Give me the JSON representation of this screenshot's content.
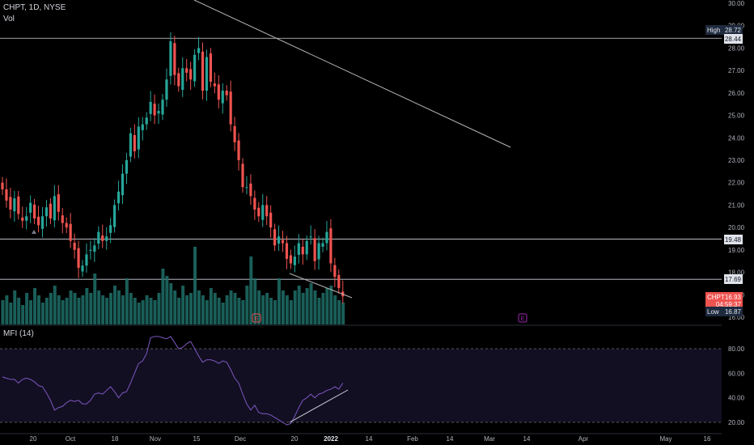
{
  "header": {
    "symbol_line": "CHPT, 1D, NYSE",
    "volume_label": "Vol"
  },
  "indicator": {
    "label": "MFI (14)"
  },
  "colors": {
    "background": "#000000",
    "up": "#26a69a",
    "down": "#ef5350",
    "volume_up": "#1f6f67",
    "volume_down": "#1f6f67",
    "line": "#b5b5b5",
    "mfi": "#7e57c2",
    "axis_text": "#b2b5be",
    "earnings": "#ef5350",
    "earnings_future": "#9c27b0"
  },
  "chart_data": [
    {
      "type": "candlestick",
      "title": "CHPT, 1D, NYSE",
      "ylim": [
        16.0,
        30.0
      ],
      "y_ticks": [
        "16.00",
        "17.00",
        "18.00",
        "19.00",
        "20.00",
        "21.00",
        "22.00",
        "23.00",
        "24.00",
        "25.00",
        "26.00",
        "27.00",
        "28.00",
        "29.00",
        "30.00"
      ],
      "x_ticks": [
        "20",
        "Oct",
        "18",
        "Nov",
        "15",
        "Dec",
        "20",
        "2022",
        "14",
        "Feb",
        "14",
        "Mar",
        "14",
        "Apr",
        "May",
        "16"
      ],
      "horizontal_levels": [
        28.44,
        19.48,
        17.69
      ],
      "markers": [
        {
          "label": "High",
          "value": "28.72"
        },
        {
          "label": "",
          "value": "28.44"
        },
        {
          "label": "",
          "value": "19.48"
        },
        {
          "label": "",
          "value": "17.69"
        },
        {
          "label": "CHPT",
          "value": "16.93",
          "sub": "04:59:37"
        },
        {
          "label": "Low",
          "value": "16.87"
        }
      ],
      "events": [
        {
          "label": "E",
          "status": "past"
        },
        {
          "label": "E",
          "status": "upcoming"
        }
      ],
      "closes": [
        21.7,
        21.2,
        20.8,
        21.3,
        20.6,
        20.3,
        20.5,
        21.1,
        20.4,
        20.1,
        20.5,
        20.9,
        20.4,
        21.4,
        20.7,
        20.2,
        20.0,
        19.4,
        19.0,
        18.2,
        18.3,
        18.8,
        19.0,
        19.2,
        19.8,
        19.4,
        19.6,
        20.1,
        21.0,
        21.6,
        22.4,
        23.0,
        24.2,
        23.4,
        24.5,
        24.6,
        24.9,
        25.6,
        25.0,
        25.2,
        25.7,
        26.6,
        28.3,
        26.8,
        26.3,
        27.1,
        26.9,
        26.6,
        27.7,
        28.0,
        26.1,
        27.6,
        26.5,
        26.3,
        25.7,
        26.1,
        25.9,
        24.6,
        23.8,
        23.0,
        21.8,
        21.8,
        21.4,
        20.8,
        20.5,
        21.0,
        20.5,
        20.0,
        19.2,
        19.6,
        19.3,
        18.6,
        18.4,
        18.7,
        19.3,
        18.8,
        19.4,
        19.6,
        18.5,
        19.3,
        19.3,
        19.8,
        18.4,
        17.8,
        17.3,
        16.93
      ],
      "volume_series": {
        "name": "Vol",
        "values": [
          1.0,
          1.2,
          0.9,
          1.4,
          1.1,
          0.8,
          1.3,
          1.0,
          1.5,
          1.2,
          0.9,
          1.1,
          1.3,
          1.6,
          1.2,
          1.0,
          1.1,
          1.4,
          1.3,
          1.1,
          1.2,
          1.5,
          1.3,
          2.1,
          1.4,
          1.2,
          1.1,
          1.3,
          1.6,
          1.4,
          1.2,
          1.9,
          1.3,
          1.1,
          0.9,
          1.0,
          1.2,
          1.1,
          1.0,
          1.3,
          2.3,
          2.0,
          1.7,
          1.4,
          1.1,
          1.6,
          1.2,
          1.3,
          3.2,
          1.4,
          1.2,
          1.0,
          1.5,
          1.3,
          1.1,
          0.9,
          1.2,
          1.4,
          1.3,
          1.1,
          1.0,
          1.6,
          2.8,
          1.9,
          1.4,
          1.2,
          1.3,
          1.1,
          1.0,
          1.9,
          1.4,
          1.2,
          1.0,
          1.4,
          1.6,
          1.3,
          1.5,
          1.7,
          1.4,
          1.1,
          1.3,
          1.5,
          1.6,
          1.2,
          1.0,
          0.9
        ]
      }
    },
    {
      "type": "line",
      "title": "MFI (14)",
      "ylim": [
        17,
        97
      ],
      "y_ticks": [
        "20.00",
        "40.00",
        "60.00",
        "80.00"
      ],
      "series": [
        {
          "name": "MFI (14)",
          "values": [
            57,
            56,
            55,
            55,
            52,
            55,
            56,
            55,
            53,
            50,
            49,
            44,
            38,
            30,
            32,
            33,
            36,
            38,
            37,
            38,
            35,
            35,
            38,
            43,
            44,
            43,
            46,
            49,
            45,
            40,
            44,
            45,
            52,
            60,
            68,
            70,
            76,
            89,
            90,
            90,
            89,
            88,
            90,
            85,
            80,
            81,
            84,
            86,
            80,
            74,
            69,
            71,
            71,
            70,
            68,
            70,
            69,
            63,
            56,
            52,
            43,
            35,
            30,
            34,
            28,
            27,
            27,
            26,
            24,
            22,
            20,
            18,
            19,
            25,
            32,
            38,
            40,
            43,
            40,
            43,
            44,
            46,
            47,
            49,
            47,
            52
          ]
        }
      ]
    }
  ]
}
